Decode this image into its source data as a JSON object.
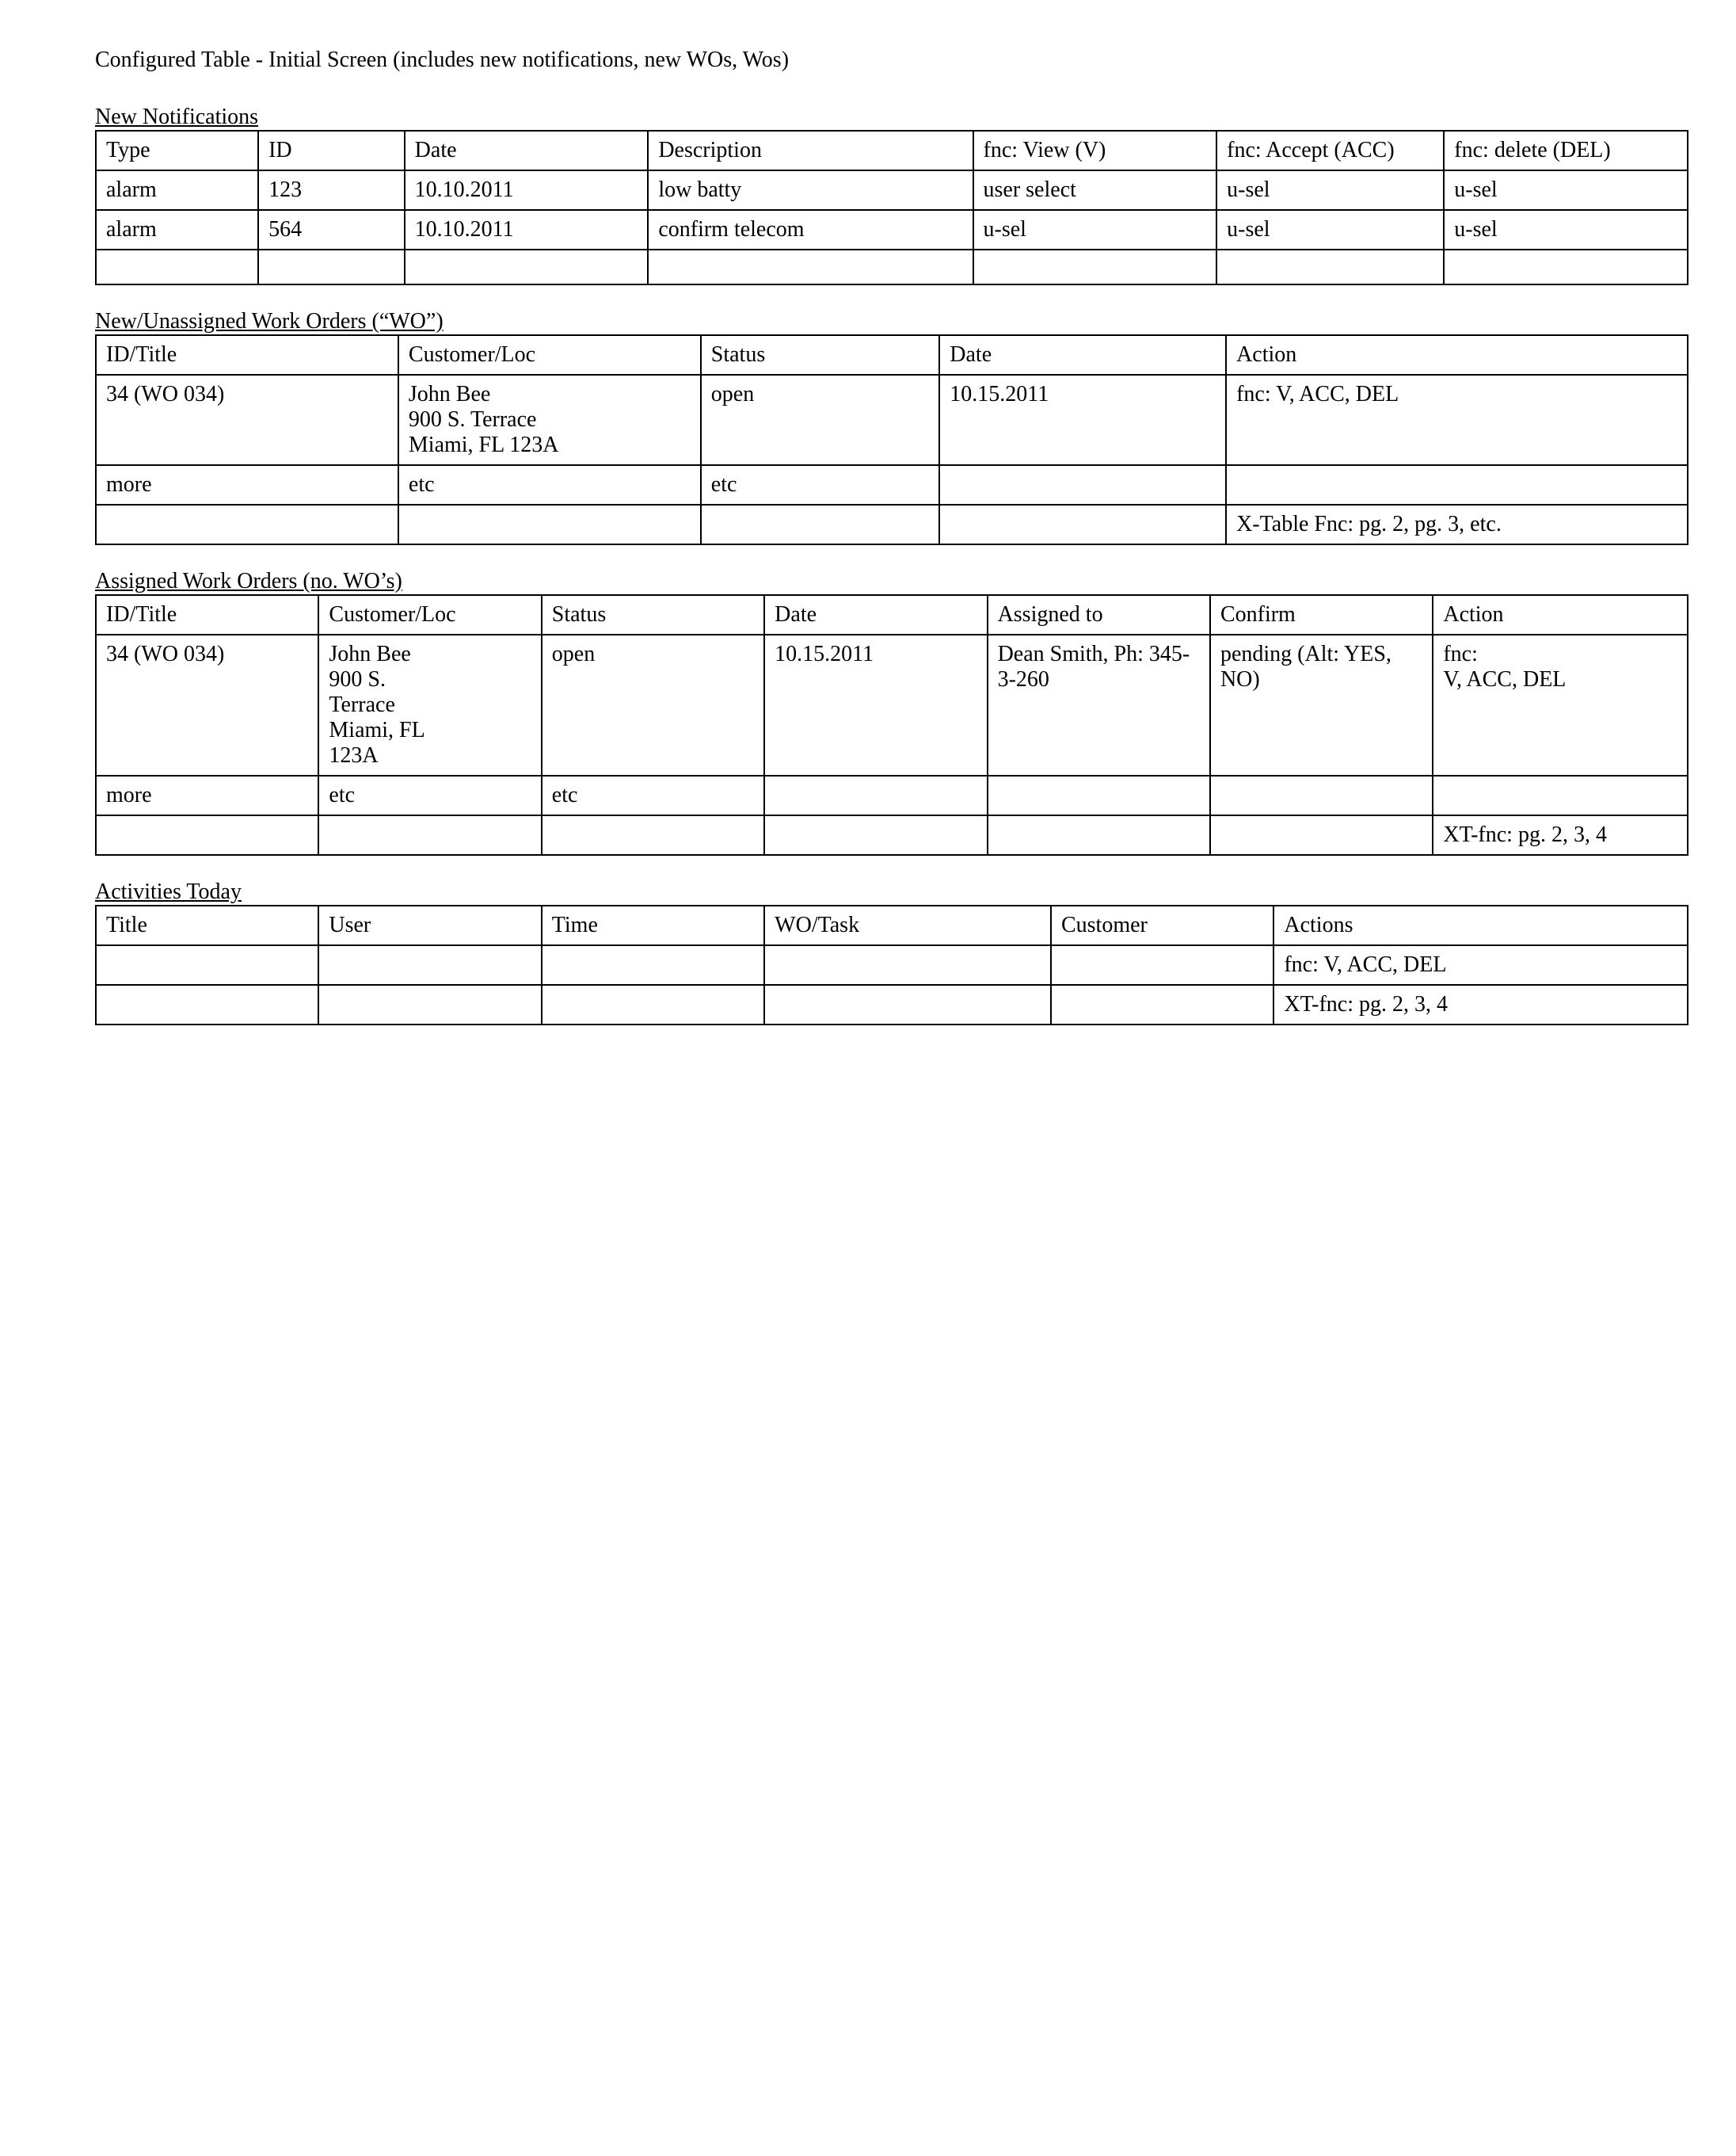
{
  "page": {
    "title": "Configured Table - Initial Screen (includes new notifications, new WOs, Wos)"
  },
  "notifications": {
    "title": "New Notifications",
    "columns": [
      "Type",
      "ID",
      "Date",
      "Description",
      "fnc: View (V)",
      "fnc: Accept (ACC)",
      "fnc: delete (DEL)"
    ],
    "rows": [
      [
        "alarm",
        "123",
        "10.10.2011",
        "low batty",
        "user select",
        "u-sel",
        "u-sel"
      ],
      [
        "alarm",
        "564",
        "10.10.2011",
        "confirm telecom",
        "u-sel",
        "u-sel",
        "u-sel"
      ],
      [
        "",
        "",
        "",
        "",
        "",
        "",
        ""
      ]
    ]
  },
  "unassigned": {
    "title": "New/Unassigned Work Orders (“WO”)",
    "columns": [
      "ID/Title",
      "Customer/Loc",
      "Status",
      "Date",
      "Action"
    ],
    "rows": [
      [
        "34 (WO 034)",
        "John Bee\n900 S. Terrace\nMiami, FL 123A",
        "open",
        "10.15.2011",
        "fnc: V, ACC, DEL"
      ],
      [
        "more",
        "etc",
        "etc",
        "",
        ""
      ],
      [
        "",
        "",
        "",
        "",
        "X-Table Fnc: pg. 2, pg. 3, etc."
      ]
    ]
  },
  "assigned": {
    "title": "Assigned Work Orders (no. WO’s)",
    "columns": [
      "ID/Title",
      "Customer/Loc",
      "Status",
      "Date",
      "Assigned to",
      "Confirm",
      "Action"
    ],
    "rows": [
      [
        "34 (WO 034)",
        "John Bee\n900 S.\nTerrace\nMiami, FL\n123A",
        "open",
        "10.15.2011",
        "Dean Smith, Ph: 345-3-260",
        "pending (Alt: YES, NO)",
        "fnc:\nV, ACC, DEL"
      ],
      [
        "more",
        "etc",
        "etc",
        "",
        "",
        "",
        ""
      ],
      [
        "",
        "",
        "",
        "",
        "",
        "",
        "XT-fnc: pg. 2, 3, 4"
      ]
    ]
  },
  "activities": {
    "title": "Activities Today",
    "columns": [
      "Title",
      "User",
      "Time",
      "WO/Task",
      "Customer",
      "Actions"
    ],
    "rows": [
      [
        "",
        "",
        "",
        "",
        "",
        "fnc: V, ACC, DEL"
      ],
      [
        "",
        "",
        "",
        "",
        "",
        "XT-fnc: pg. 2, 3, 4"
      ]
    ]
  }
}
